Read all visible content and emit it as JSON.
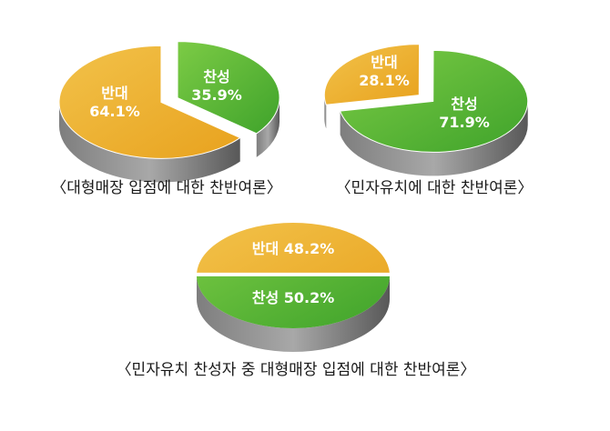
{
  "colors": {
    "orange_top": "#E8A21E",
    "orange_light": "#F2C24A",
    "green_top": "#3FA32B",
    "green_light": "#7CCB45",
    "side_gray": "#7E7E7E",
    "side_dark": "#585858"
  },
  "chart_data": [
    {
      "type": "pie",
      "title": "〈대형매장 입점에 대한 찬반여론〉",
      "slices": [
        {
          "name": "찬성",
          "value": 35.9,
          "label": "35.9%",
          "color": "green"
        },
        {
          "name": "반대",
          "value": 64.1,
          "label": "64.1%",
          "color": "orange"
        }
      ],
      "exploded": true
    },
    {
      "type": "pie",
      "title": "〈민자유치에 대한 찬반여론〉",
      "slices": [
        {
          "name": "반대",
          "value": 28.1,
          "label": "28.1%",
          "color": "orange"
        },
        {
          "name": "찬성",
          "value": 71.9,
          "label": "71.9%",
          "color": "green"
        }
      ],
      "exploded": true
    },
    {
      "type": "pie",
      "title": "〈민자유치 찬성자 중 대형매장 입점에 대한 찬반여론〉",
      "slices": [
        {
          "name": "반대",
          "value": 48.2,
          "label": "반대 48.2%",
          "color": "orange"
        },
        {
          "name": "찬성",
          "value": 50.2,
          "label": "찬성 50.2%",
          "color": "green"
        }
      ],
      "exploded": false
    }
  ]
}
